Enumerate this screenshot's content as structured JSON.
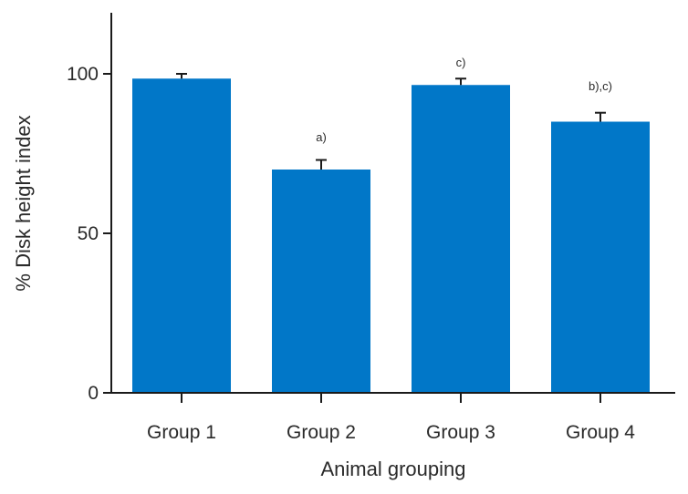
{
  "chart_data": {
    "type": "bar",
    "title": "",
    "xlabel": "Animal grouping",
    "ylabel": "% Disk height index",
    "categories": [
      "Group 1",
      "Group 2",
      "Group 3",
      "Group 4"
    ],
    "values": [
      98.5,
      70,
      96.5,
      85
    ],
    "errors": [
      1.5,
      3,
      2,
      2.8
    ],
    "annotations": [
      "",
      "a)",
      "c)",
      "b),c)"
    ],
    "yticks": [
      0,
      50,
      100
    ],
    "ylim": [
      0,
      118
    ],
    "bar_color": "#0177c8",
    "grid": false
  }
}
